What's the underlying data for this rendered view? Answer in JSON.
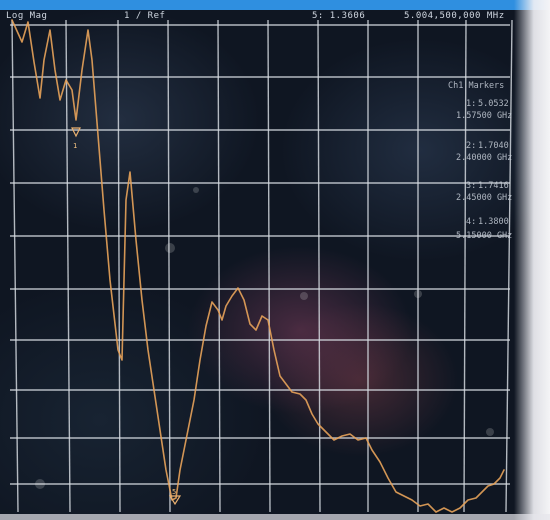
{
  "header": {
    "left": "Log Mag",
    "scale": "1 / Ref",
    "stim": "5: 1.3606",
    "freq": "5.004,500,000 MHz"
  },
  "marker_panel": {
    "title": "Ch1 Markers",
    "entries": [
      {
        "id": "1:",
        "value": "5.0532",
        "freq": "1.57500 GHz"
      },
      {
        "id": "2:",
        "value": "1.7040",
        "freq": "2.40000 GHz"
      },
      {
        "id": "3:",
        "value": "1.7416",
        "freq": "2.45000 GHz"
      },
      {
        "id": "4:",
        "value": "1.3800",
        "freq": "5.15000 GHz"
      }
    ]
  },
  "markers_on_trace": [
    "1",
    "5"
  ],
  "colors": {
    "trace": "#e8a35a",
    "grid": "#d8dde3",
    "topbar": "#2f8fe0"
  }
}
